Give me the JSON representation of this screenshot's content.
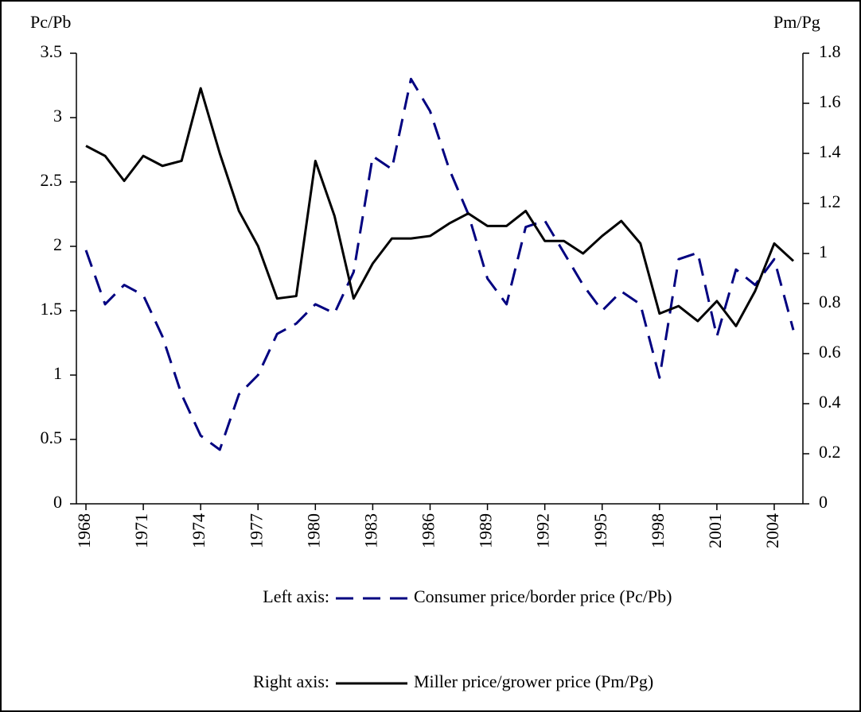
{
  "chart_data": {
    "type": "line",
    "y_label": "Pc/Pb",
    "y2_label": "Pm/Pg",
    "x": [
      1968,
      1969,
      1970,
      1971,
      1972,
      1973,
      1974,
      1975,
      1976,
      1977,
      1978,
      1979,
      1980,
      1981,
      1982,
      1983,
      1984,
      1985,
      1986,
      1987,
      1988,
      1989,
      1990,
      1991,
      1992,
      1993,
      1994,
      1995,
      1996,
      1997,
      1998,
      1999,
      2000,
      2001,
      2002,
      2003,
      2004,
      2005
    ],
    "xlim": [
      1967.5,
      2005.5
    ],
    "xticks": [
      1968,
      1971,
      1974,
      1977,
      1980,
      1983,
      1986,
      1989,
      1992,
      1995,
      1998,
      2001,
      2004
    ],
    "ylim": [
      0,
      3.5
    ],
    "yticks": [
      0,
      0.5,
      1,
      1.5,
      2,
      2.5,
      3,
      3.5
    ],
    "y2lim": [
      0,
      1.8
    ],
    "y2ticks": [
      0,
      0.2,
      0.4,
      0.6,
      0.8,
      1,
      1.2,
      1.4,
      1.6,
      1.8
    ],
    "series": [
      {
        "name": "Consumer price/border price (Pc/Pb)",
        "legend_prefix": "Left axis:",
        "color": "#000080",
        "dashed": true,
        "values": [
          1.97,
          1.55,
          1.7,
          1.62,
          1.3,
          0.85,
          0.53,
          0.42,
          0.85,
          1.0,
          1.32,
          1.4,
          1.55,
          1.48,
          1.8,
          2.7,
          2.6,
          3.3,
          3.05,
          2.6,
          2.25,
          1.75,
          1.55,
          2.15,
          2.2,
          1.95,
          1.7,
          1.5,
          1.65,
          1.55,
          0.98,
          1.9,
          1.95,
          1.3,
          1.82,
          1.7,
          1.9,
          1.35
        ]
      },
      {
        "name": "Miller price/grower price (Pm/Pg)",
        "legend_prefix": "Right axis:",
        "color": "#000000",
        "dashed": false,
        "axis": "y2",
        "values": [
          1.43,
          1.39,
          1.29,
          1.39,
          1.35,
          1.37,
          1.66,
          1.4,
          1.17,
          1.03,
          0.82,
          0.83,
          1.37,
          1.15,
          0.82,
          0.96,
          1.06,
          1.06,
          1.07,
          1.12,
          1.16,
          1.11,
          1.11,
          1.17,
          1.05,
          1.05,
          1.0,
          1.07,
          1.13,
          1.04,
          0.76,
          0.79,
          0.73,
          0.81,
          0.71,
          0.85,
          1.04,
          0.97
        ]
      }
    ]
  }
}
